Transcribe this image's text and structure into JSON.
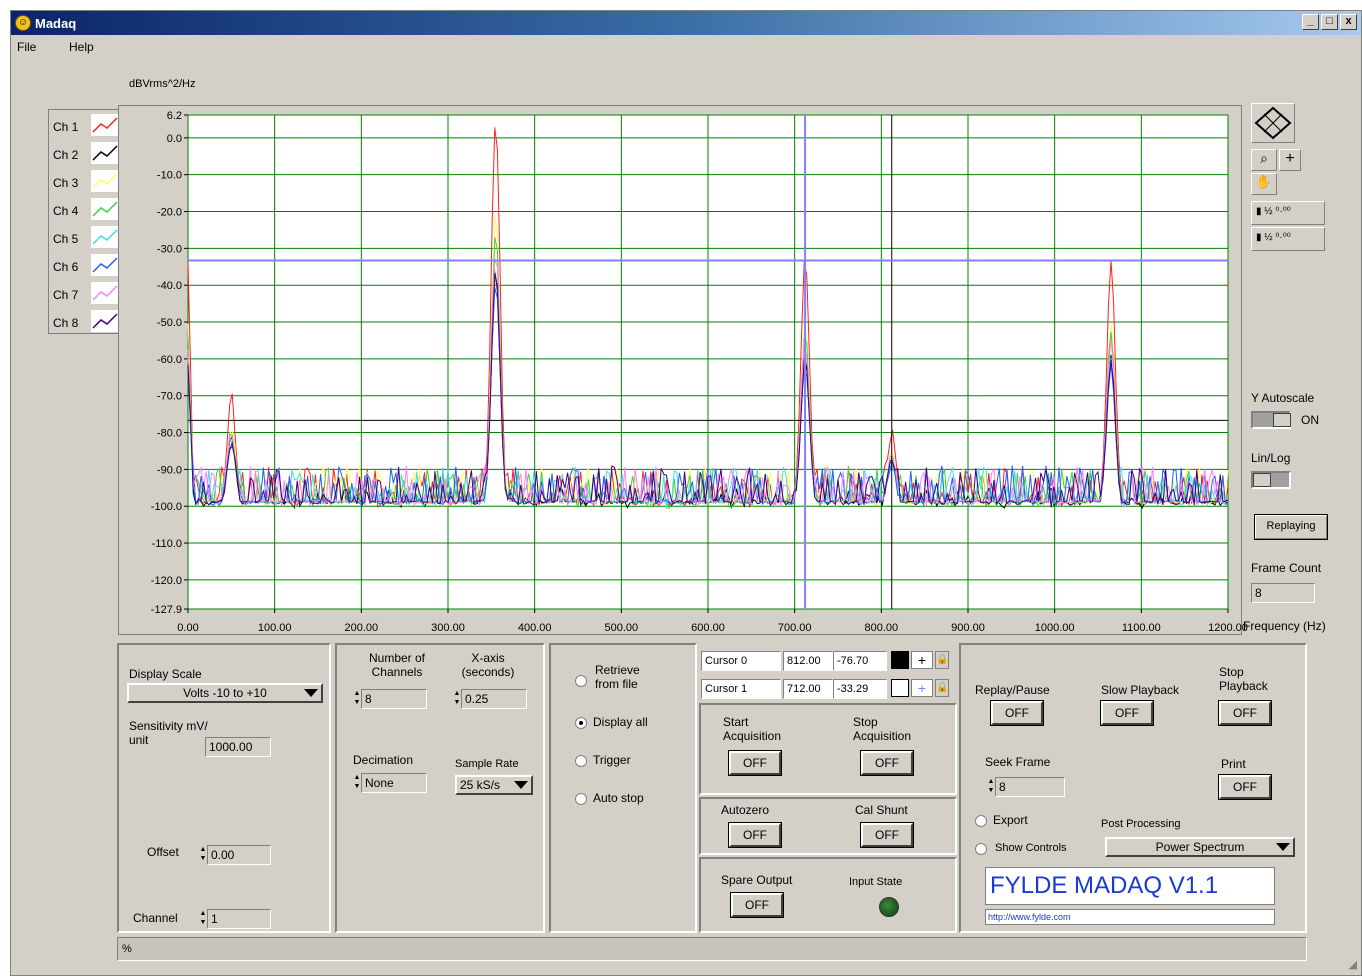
{
  "window": {
    "title": "Madaq",
    "buttons": [
      "_",
      "□",
      "x"
    ]
  },
  "menu": {
    "file": "File",
    "help": "Help"
  },
  "graph": {
    "y_unit_label": "dBVrms^2/Hz",
    "x_unit_label": "Frequency (Hz)",
    "y_ticks": [
      "6.2",
      "0.0",
      "-10.0",
      "-20.0",
      "-30.0",
      "-40.0",
      "-50.0",
      "-60.0",
      "-70.0",
      "-80.0",
      "-90.0",
      "-100.0",
      "-110.0",
      "-120.0",
      "-127.9"
    ],
    "x_ticks": [
      "0.00",
      "100.00",
      "200.00",
      "300.00",
      "400.00",
      "500.00",
      "600.00",
      "700.00",
      "800.00",
      "900.00",
      "1000.00",
      "1100.00",
      "1200.00"
    ],
    "legend": [
      {
        "name": "Ch 1",
        "color": "#ff2020"
      },
      {
        "name": "Ch 2",
        "color": "#000000"
      },
      {
        "name": "Ch 3",
        "color": "#ffff60"
      },
      {
        "name": "Ch 4",
        "color": "#40d040"
      },
      {
        "name": "Ch 5",
        "color": "#40e0e0"
      },
      {
        "name": "Ch 6",
        "color": "#2060ff"
      },
      {
        "name": "Ch 7",
        "color": "#ff80ff"
      },
      {
        "name": "Ch 8",
        "color": "#400080"
      }
    ],
    "colors": {
      "plot_bg": "#ffffff",
      "grid": "#008000",
      "cursor0": "#000000",
      "cursor1": "#8080ff"
    }
  },
  "chart_data": {
    "type": "line",
    "xlabel": "Frequency (Hz)",
    "ylabel": "dBVrms^2/Hz",
    "xlim": [
      0,
      1200
    ],
    "ylim": [
      -127.9,
      6.2
    ],
    "grid": true,
    "legend_position": "left",
    "peaks": [
      {
        "x": 0,
        "y": -35
      },
      {
        "x": 50,
        "y": -70
      },
      {
        "x": 355,
        "y": 6
      },
      {
        "x": 712,
        "y": -33
      },
      {
        "x": 812,
        "y": -80
      },
      {
        "x": 1065,
        "y": -33
      }
    ],
    "noise_floor": -100,
    "series": [
      {
        "name": "Ch 1",
        "peak_scale": 1.0
      },
      {
        "name": "Ch 2",
        "peak_scale": 0.6
      },
      {
        "name": "Ch 3",
        "peak_scale": 0.75
      },
      {
        "name": "Ch 4",
        "peak_scale": 0.7
      },
      {
        "name": "Ch 5",
        "peak_scale": 0.62
      },
      {
        "name": "Ch 6",
        "peak_scale": 0.58
      },
      {
        "name": "Ch 7",
        "peak_scale": 0.66
      },
      {
        "name": "Ch 8",
        "peak_scale": 0.6
      }
    ]
  },
  "side": {
    "y_autoscale_label": "Y Autoscale",
    "y_autoscale_state": "ON",
    "linlog_label": "Lin/Log",
    "replaying": "Replaying",
    "frame_count_label": "Frame Count",
    "frame_count_value": "8"
  },
  "display": {
    "scale_label": "Display Scale",
    "scale_value": "Volts -10 to +10",
    "sensitivity_label": "Sensitivity mV/ unit",
    "sensitivity_value": "1000.00",
    "offset_label": "Offset",
    "offset_value": "0.00",
    "channel_label": "Channel",
    "channel_value": "1"
  },
  "acq": {
    "channels_label": "Number of Channels",
    "channels_value": "8",
    "xaxis_label": "X-axis (seconds)",
    "xaxis_value": "0.25",
    "decimation_label": "Decimation",
    "decimation_value": "None",
    "samplerate_label": "Sample Rate",
    "samplerate_value": "25 kS/s"
  },
  "mode": {
    "retrieve": "Retrieve from file",
    "display_all": "Display all",
    "trigger": "Trigger",
    "auto_stop": "Auto stop"
  },
  "cursors": [
    {
      "name": "Cursor 0",
      "x": "812.00",
      "y": "-76.70"
    },
    {
      "name": "Cursor 1",
      "x": "712.00",
      "y": "-33.29"
    }
  ],
  "controls": {
    "start_acq": "Start Acquisition",
    "stop_acq": "Stop Acquisition",
    "autozero": "Autozero",
    "cal_shunt": "Cal Shunt",
    "spare_output": "Spare Output",
    "input_state": "Input State",
    "off": "OFF"
  },
  "playback": {
    "replay_pause": "Replay/Pause",
    "slow_playback": "Slow Playback",
    "stop_playback": "Stop Playback",
    "seek_frame": "Seek Frame",
    "seek_value": "8",
    "print": "Print",
    "export": "Export",
    "show_controls": "Show Controls",
    "post_processing": "Post Processing",
    "post_value": "Power Spectrum",
    "brand": "FYLDE MADAQ V1.1",
    "url": "http://www.fylde.com"
  },
  "status": {
    "percent": "%"
  }
}
